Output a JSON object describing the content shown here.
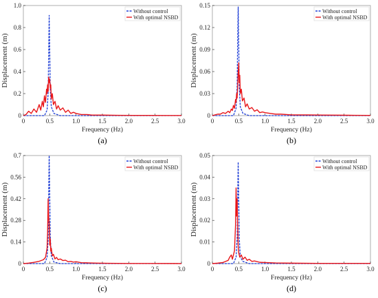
{
  "figure": {
    "series_names": [
      "Without control",
      "With optimal NSBD"
    ],
    "colors": {
      "without": "#1f3fd6",
      "with": "#e8161a",
      "axis": "#222222",
      "frame": "#9a9a9a"
    },
    "xlabel": "Frequency (Hz)",
    "ylabel": "Displacement (m)"
  },
  "chart_data": [
    {
      "type": "line",
      "panel_label": "(a)",
      "xlabel": "Frequency (Hz)",
      "ylabel": "Displacement (m)",
      "xlim": [
        0,
        3.0
      ],
      "ylim": [
        0,
        1.0
      ],
      "xticks": [
        "0",
        "0.5",
        "1.0",
        "1.5",
        "2.0",
        "2.5",
        "3.0"
      ],
      "yticks": [
        "0",
        "0.2",
        "0.4",
        "0.6",
        "0.8",
        "1.0"
      ],
      "legend": "top-right",
      "series": [
        {
          "name": "Without control",
          "x": [
            0,
            0.4,
            0.45,
            0.47,
            0.48,
            0.49,
            0.5,
            0.51,
            0.53,
            0.58,
            0.7,
            3.0
          ],
          "y": [
            0,
            0.0,
            0.05,
            0.2,
            0.55,
            0.91,
            0.6,
            0.25,
            0.08,
            0.02,
            0.0,
            0.0
          ]
        },
        {
          "name": "With optimal NSBD",
          "x": [
            0,
            0.05,
            0.1,
            0.15,
            0.2,
            0.25,
            0.3,
            0.33,
            0.36,
            0.38,
            0.4,
            0.42,
            0.44,
            0.45,
            0.46,
            0.47,
            0.48,
            0.49,
            0.5,
            0.51,
            0.52,
            0.53,
            0.55,
            0.57,
            0.6,
            0.63,
            0.66,
            0.7,
            0.75,
            0.8,
            0.85,
            0.9,
            0.95,
            1.0,
            1.1,
            1.2,
            1.3,
            1.5,
            1.8,
            2.1,
            2.4,
            2.7,
            3.0
          ],
          "y": [
            0,
            0.01,
            0.04,
            0.02,
            0.06,
            0.03,
            0.1,
            0.05,
            0.13,
            0.08,
            0.18,
            0.12,
            0.24,
            0.2,
            0.28,
            0.22,
            0.35,
            0.3,
            0.33,
            0.25,
            0.28,
            0.15,
            0.2,
            0.1,
            0.13,
            0.06,
            0.09,
            0.05,
            0.07,
            0.03,
            0.05,
            0.02,
            0.03,
            0.02,
            0.01,
            0.01,
            0.005,
            0.005,
            0.003,
            0.002,
            0.002,
            0.001,
            0.001
          ]
        }
      ]
    },
    {
      "type": "line",
      "panel_label": "(b)",
      "xlabel": "Frequency (Hz)",
      "ylabel": "Displacement (m)",
      "xlim": [
        0,
        3.0
      ],
      "ylim": [
        0,
        0.15
      ],
      "xticks": [
        "0",
        "0.5",
        "1.0",
        "1.5",
        "2.0",
        "2.5",
        "3.0"
      ],
      "yticks": [
        "0",
        "0.03",
        "0.06",
        "0.09",
        "0.12",
        "0.15"
      ],
      "legend": "top-right",
      "series": [
        {
          "name": "Without control",
          "x": [
            0,
            0.4,
            0.45,
            0.47,
            0.48,
            0.49,
            0.5,
            0.51,
            0.53,
            0.58,
            0.7,
            3.0
          ],
          "y": [
            0,
            0.0,
            0.01,
            0.04,
            0.1,
            0.148,
            0.1,
            0.04,
            0.012,
            0.003,
            0.0,
            0.0
          ]
        },
        {
          "name": "With optimal NSBD",
          "x": [
            0,
            0.05,
            0.1,
            0.15,
            0.2,
            0.25,
            0.3,
            0.33,
            0.36,
            0.38,
            0.4,
            0.42,
            0.44,
            0.45,
            0.46,
            0.47,
            0.48,
            0.49,
            0.5,
            0.51,
            0.52,
            0.53,
            0.55,
            0.57,
            0.6,
            0.63,
            0.66,
            0.7,
            0.75,
            0.8,
            0.85,
            0.9,
            0.95,
            1.0,
            1.1,
            1.2,
            1.3,
            1.5,
            1.8,
            2.1,
            2.4,
            2.7,
            3.0
          ],
          "y": [
            0,
            0.001,
            0.002,
            0.002,
            0.004,
            0.003,
            0.006,
            0.004,
            0.009,
            0.007,
            0.014,
            0.01,
            0.022,
            0.018,
            0.03,
            0.024,
            0.04,
            0.06,
            0.072,
            0.045,
            0.055,
            0.03,
            0.036,
            0.02,
            0.024,
            0.012,
            0.016,
            0.009,
            0.011,
            0.006,
            0.008,
            0.004,
            0.005,
            0.004,
            0.003,
            0.002,
            0.002,
            0.001,
            0.001,
            0.0008,
            0.0006,
            0.0004,
            0.0003
          ]
        }
      ]
    },
    {
      "type": "line",
      "panel_label": "(c)",
      "xlabel": "Frequency (Hz)",
      "ylabel": "Displacement (m)",
      "xlim": [
        0,
        3.0
      ],
      "ylim": [
        0,
        0.7
      ],
      "xticks": [
        "0",
        "0.5",
        "1.0",
        "1.5",
        "2.0",
        "2.5",
        "3.0"
      ],
      "yticks": [
        "0",
        "0.14",
        "0.28",
        "0.42",
        "0.56",
        "0.7"
      ],
      "legend": "top-right",
      "series": [
        {
          "name": "Without control",
          "x": [
            0,
            0.4,
            0.45,
            0.47,
            0.48,
            0.49,
            0.5,
            0.51,
            0.53,
            0.58,
            0.7,
            3.0
          ],
          "y": [
            0,
            0.0,
            0.04,
            0.15,
            0.45,
            0.7,
            0.45,
            0.18,
            0.05,
            0.01,
            0.0,
            0.0
          ]
        },
        {
          "name": "With optimal NSBD",
          "x": [
            0,
            0.1,
            0.2,
            0.3,
            0.38,
            0.42,
            0.45,
            0.46,
            0.47,
            0.48,
            0.49,
            0.5,
            0.51,
            0.52,
            0.53,
            0.55,
            0.57,
            0.6,
            0.63,
            0.66,
            0.7,
            0.75,
            0.8,
            0.85,
            0.9,
            0.95,
            1.0,
            1.1,
            1.2,
            1.4,
            1.6,
            1.8,
            2.0,
            2.4,
            3.0
          ],
          "y": [
            0,
            0.003,
            0.008,
            0.015,
            0.025,
            0.04,
            0.1,
            0.2,
            0.42,
            0.3,
            0.26,
            0.12,
            0.16,
            0.08,
            0.1,
            0.05,
            0.06,
            0.03,
            0.04,
            0.025,
            0.03,
            0.02,
            0.022,
            0.012,
            0.014,
            0.01,
            0.012,
            0.006,
            0.005,
            0.003,
            0.002,
            0.0015,
            0.001,
            0.001,
            0.0005
          ]
        }
      ]
    },
    {
      "type": "line",
      "panel_label": "(d)",
      "xlabel": "Frequency (Hz)",
      "ylabel": "Displacement (m)",
      "xlim": [
        0,
        3.0
      ],
      "ylim": [
        0,
        0.05
      ],
      "xticks": [
        "0",
        "0.5",
        "1.0",
        "1.5",
        "2.0",
        "2.5",
        "3.0"
      ],
      "yticks": [
        "0",
        "0.01",
        "0.02",
        "0.03",
        "0.04",
        "0.05"
      ],
      "legend": "top-right",
      "series": [
        {
          "name": "Without control",
          "x": [
            0,
            0.4,
            0.45,
            0.47,
            0.48,
            0.49,
            0.5,
            0.51,
            0.53,
            0.58,
            0.7,
            3.0
          ],
          "y": [
            0,
            0.0,
            0.003,
            0.012,
            0.03,
            0.047,
            0.03,
            0.012,
            0.003,
            0.001,
            0.0,
            0.0
          ]
        },
        {
          "name": "With optimal NSBD",
          "x": [
            0,
            0.1,
            0.2,
            0.25,
            0.3,
            0.33,
            0.36,
            0.38,
            0.4,
            0.42,
            0.43,
            0.44,
            0.45,
            0.46,
            0.47,
            0.48,
            0.49,
            0.5,
            0.52,
            0.55,
            0.58,
            0.62,
            0.66,
            0.7,
            0.75,
            0.8,
            0.9,
            1.0,
            1.2,
            1.5,
            2.0,
            2.5,
            3.0
          ],
          "y": [
            0,
            0.0002,
            0.0005,
            0.001,
            0.0015,
            0.003,
            0.004,
            0.002,
            0.004,
            0.006,
            0.012,
            0.018,
            0.035,
            0.022,
            0.03,
            0.018,
            0.008,
            0.005,
            0.003,
            0.004,
            0.002,
            0.003,
            0.0015,
            0.002,
            0.001,
            0.0012,
            0.0006,
            0.0005,
            0.0003,
            0.0002,
            0.0001,
            0.0001,
            0.0001
          ]
        }
      ]
    }
  ]
}
